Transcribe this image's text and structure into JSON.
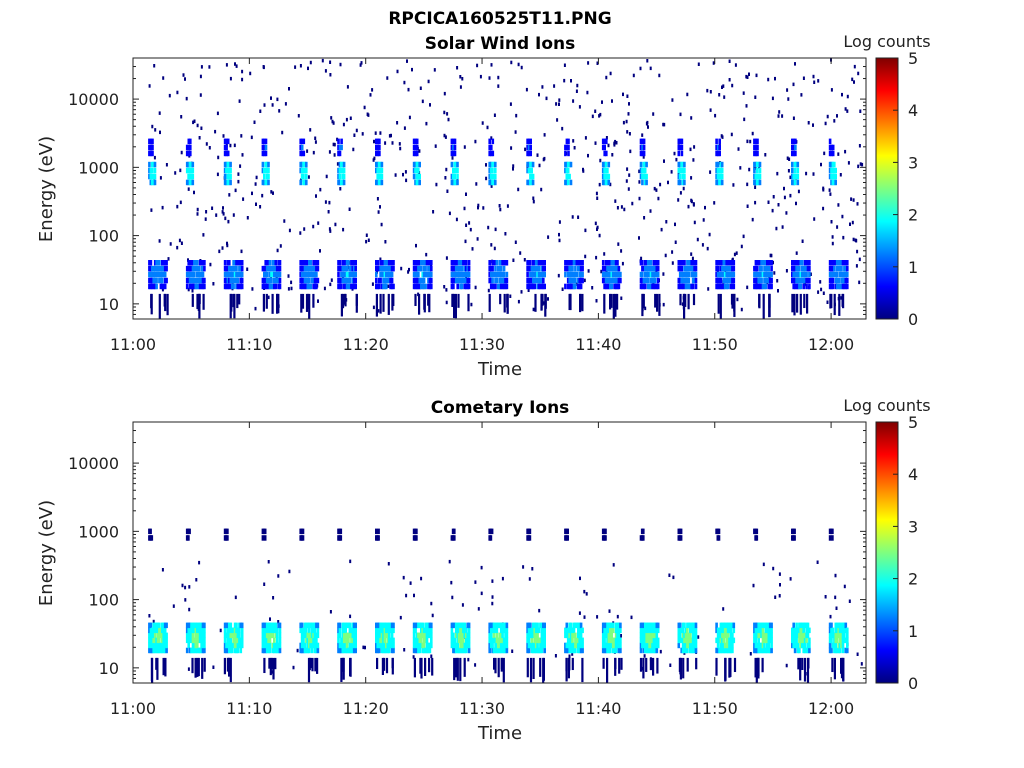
{
  "figure_title": "RPCICA160525T11.PNG",
  "colormap": [
    "#00007f",
    "#0000ff",
    "#007fff",
    "#00ffff",
    "#7fff7f",
    "#ffff00",
    "#ff7f00",
    "#ff0000",
    "#7f0000"
  ],
  "chart_data": [
    {
      "type": "heatmap",
      "id": "solar",
      "title": "Solar Wind Ions",
      "xlabel": "Time",
      "ylabel": "Energy (eV)",
      "x_range_min": [
        0,
        63
      ],
      "x_ticks_min": [
        0,
        10,
        20,
        30,
        40,
        50,
        60
      ],
      "x_tick_labels": [
        "11:00",
        "11:10",
        "11:20",
        "11:30",
        "11:40",
        "11:50",
        "12:00"
      ],
      "y_scale": "log",
      "y_range_ev": [
        6,
        40000
      ],
      "y_ticks_ev": [
        10,
        100,
        1000,
        10000
      ],
      "y_tick_labels": [
        "10",
        "100",
        "1000",
        "10000"
      ],
      "colorbar_label": "Log counts",
      "colorbar_range": [
        0,
        5
      ],
      "colorbar_ticks": [
        "0",
        "1",
        "2",
        "3",
        "4",
        "5"
      ],
      "data_start_min": 1.3,
      "scan_period_min": 3.25,
      "scans": 19,
      "background_density": 0.2,
      "background_emax_ev": 40000,
      "features": [
        {
          "name": "low-energy band",
          "energy_ev": [
            18,
            40
          ],
          "log_counts": [
            0.6,
            1.8
          ],
          "duration_min": 1.6
        },
        {
          "name": "solar wind peak",
          "energy_ev": [
            600,
            1100
          ],
          "log_counts": [
            1.2,
            2.5
          ],
          "duration_min": 0.6
        },
        {
          "name": "alpha peak",
          "energy_ev": [
            1600,
            2400
          ],
          "log_counts": [
            0.5,
            1.3
          ],
          "duration_min": 0.4
        }
      ]
    },
    {
      "type": "heatmap",
      "id": "cometary",
      "title": "Cometary Ions",
      "xlabel": "Time",
      "ylabel": "Energy (eV)",
      "x_range_min": [
        0,
        63
      ],
      "x_ticks_min": [
        0,
        10,
        20,
        30,
        40,
        50,
        60
      ],
      "x_tick_labels": [
        "11:00",
        "11:10",
        "11:20",
        "11:30",
        "11:40",
        "11:50",
        "12:00"
      ],
      "y_scale": "log",
      "y_range_ev": [
        6,
        40000
      ],
      "y_ticks_ev": [
        10,
        100,
        1000,
        10000
      ],
      "y_tick_labels": [
        "10",
        "100",
        "1000",
        "10000"
      ],
      "colorbar_label": "Log counts",
      "colorbar_range": [
        0,
        5
      ],
      "colorbar_ticks": [
        "0",
        "1",
        "2",
        "3",
        "4",
        "5"
      ],
      "data_start_min": 1.3,
      "scan_period_min": 3.25,
      "scans": 19,
      "background_density": 0.035,
      "background_emax_ev": 400,
      "features": [
        {
          "name": "cometary ion band",
          "energy_ev": [
            18,
            42
          ],
          "log_counts": [
            1.3,
            2.8
          ],
          "duration_min": 1.6
        },
        {
          "name": "weak 1 keV signal",
          "energy_ev": [
            800,
            1000
          ],
          "log_counts": [
            0.2,
            0.6
          ],
          "duration_min": 0.3
        }
      ]
    }
  ]
}
